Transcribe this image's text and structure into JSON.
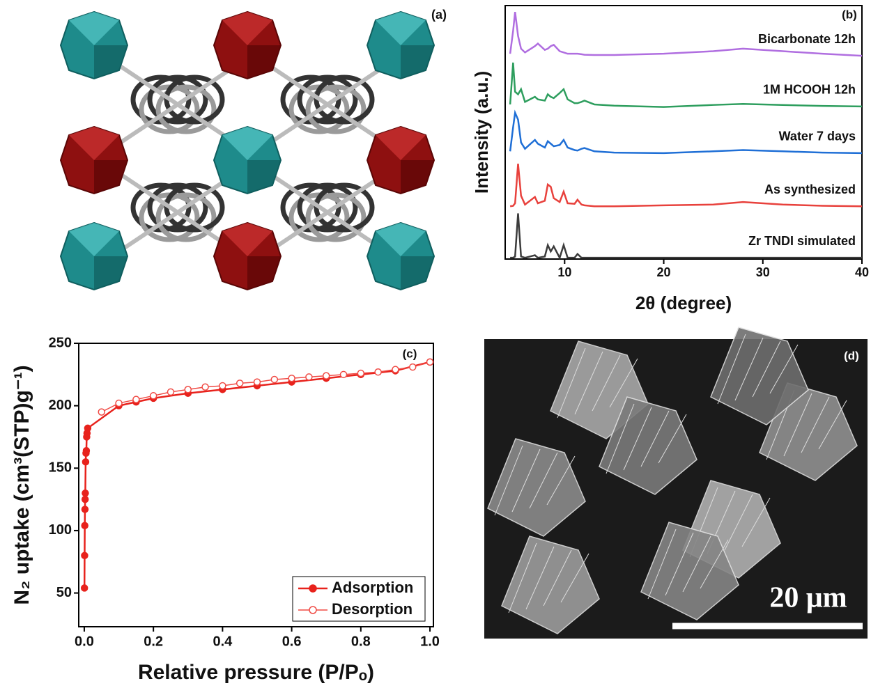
{
  "panels": {
    "a": {
      "label": "(a)"
    },
    "d": {
      "label": "(d)",
      "scale_bar": "20 μm"
    }
  },
  "chart_data": [
    {
      "type": "line",
      "panel_label": "(b)",
      "x_label": "2θ (degree)",
      "y_label": "Intensity (a.u.)",
      "x": [
        4.5,
        4.8,
        5.0,
        5.3,
        5.6,
        6.0,
        7.0,
        7.3,
        8.0,
        8.3,
        8.6,
        8.9,
        9.5,
        9.9,
        10.3,
        11.0,
        11.3,
        11.7,
        12.0,
        13,
        15,
        20,
        25,
        28,
        32,
        36,
        40
      ],
      "xlim": [
        4,
        40
      ],
      "xticks": [
        10,
        20,
        30,
        40
      ],
      "ylim": [
        0,
        100
      ],
      "series": [
        {
          "name": "Zr TNDI simulated",
          "color": "#3c3c3c",
          "values": [
            0.5,
            0.5,
            1,
            18,
            1,
            0.5,
            1.5,
            0.5,
            1,
            5.5,
            3,
            5,
            0.5,
            5.5,
            0.5,
            0.5,
            2,
            0.5,
            0.5,
            0.5,
            0.5,
            0.5,
            0.5,
            0.5,
            0.5,
            0.5,
            0.5
          ]
        },
        {
          "name": "As synthesized",
          "color": "#e8413c",
          "values": [
            20.8,
            21,
            22,
            37.6,
            25,
            21.5,
            24.5,
            22,
            23,
            29.4,
            28.5,
            24,
            22.5,
            26.6,
            22,
            21.8,
            23.4,
            21.5,
            21.2,
            20.8,
            20.8,
            21.2,
            21.5,
            22.5,
            21.5,
            21,
            20.8
          ]
        },
        {
          "name": "Water 7 days",
          "color": "#1f6fd6",
          "values": [
            42.5,
            52,
            57.7,
            55,
            46,
            43.5,
            47,
            45.5,
            44,
            46.5,
            45.5,
            44.5,
            45,
            47,
            44,
            43,
            42.8,
            43.5,
            43.8,
            42.5,
            42,
            41.8,
            42.5,
            43,
            42.5,
            42,
            41.8
          ]
        },
        {
          "name": "1M HCOOH 12h",
          "color": "#2e9e5e",
          "values": [
            61,
            77.5,
            66,
            65,
            67,
            62,
            64,
            63,
            62.5,
            65,
            64,
            63.5,
            65.5,
            67,
            63,
            61.5,
            61.5,
            62,
            62.5,
            61,
            60.5,
            60,
            60.8,
            61.2,
            60.8,
            60.4,
            60.2
          ]
        },
        {
          "name": "Bicarbonate 12h",
          "color": "#b06ee0",
          "values": [
            81,
            90,
            97.5,
            88,
            83,
            81.5,
            84,
            85,
            82.5,
            83,
            84,
            84.5,
            82,
            81.5,
            81,
            81,
            81,
            80.8,
            80.6,
            80.5,
            80.5,
            81,
            82,
            83,
            82,
            81,
            80.2
          ]
        }
      ]
    },
    {
      "type": "scatter",
      "panel_label": "(c)",
      "x_label": "Relative pressure (P/Pₒ)",
      "y_label": "N₂ uptake (cm³(STP)g⁻¹)",
      "xlim": [
        -0.016,
        1.01
      ],
      "ylim": [
        23,
        250
      ],
      "xticks": [
        {
          "value": 0,
          "label": "0.0"
        },
        {
          "value": 0.2,
          "label": "0.2"
        },
        {
          "value": 0.4,
          "label": "0.4"
        },
        {
          "value": 0.6,
          "label": "0.6"
        },
        {
          "value": 0.8,
          "label": "0.8"
        },
        {
          "value": 1,
          "label": "1.0"
        }
      ],
      "yticks": [
        50,
        100,
        150,
        200,
        250
      ],
      "legend": "lower right",
      "series": [
        {
          "name": "Adsorption",
          "color": "#e8221c",
          "marker": "filled",
          "x": [
            0.0005,
            0.001,
            0.0015,
            0.002,
            0.0025,
            0.003,
            0.004,
            0.005,
            0.006,
            0.007,
            0.008,
            0.01,
            0.1,
            0.15,
            0.2,
            0.3,
            0.4,
            0.5,
            0.6,
            0.7,
            0.8,
            0.9,
            1.0
          ],
          "values": [
            54,
            80,
            104,
            117,
            125,
            130,
            155,
            162,
            164,
            175,
            178,
            182,
            200,
            203,
            206,
            210,
            213,
            216,
            219,
            222,
            225,
            228,
            235
          ]
        },
        {
          "name": "Desorption",
          "color": "#f04a44",
          "marker": "open",
          "x": [
            1.0,
            0.95,
            0.9,
            0.85,
            0.8,
            0.75,
            0.7,
            0.65,
            0.6,
            0.55,
            0.5,
            0.45,
            0.4,
            0.35,
            0.3,
            0.25,
            0.2,
            0.15,
            0.1,
            0.05
          ],
          "values": [
            235,
            231,
            229,
            227,
            226,
            225,
            224,
            223,
            222,
            221,
            219,
            218,
            216,
            215,
            213,
            211,
            208,
            205,
            202,
            195
          ]
        }
      ]
    }
  ]
}
